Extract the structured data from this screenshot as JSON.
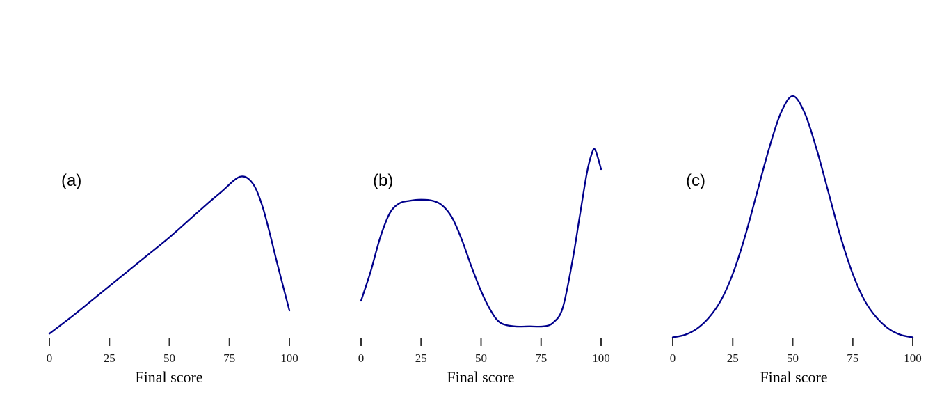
{
  "style": {
    "curve_color": "#00008B",
    "text_color": "#000000",
    "tick_color": "#333333",
    "background": "#ffffff"
  },
  "chart_data": [
    {
      "type": "line",
      "label": "(a)",
      "xlabel": "Final score",
      "xlim": [
        0,
        100
      ],
      "x_ticks": [
        0,
        25,
        50,
        75,
        100
      ],
      "legend": "none",
      "grid": false,
      "x": [
        0,
        10,
        20,
        30,
        40,
        50,
        58,
        66,
        72,
        77,
        80,
        83,
        86,
        89,
        92,
        95,
        100
      ],
      "density": [
        0.025,
        0.1,
        0.18,
        0.26,
        0.34,
        0.42,
        0.49,
        0.56,
        0.61,
        0.655,
        0.67,
        0.66,
        0.62,
        0.54,
        0.43,
        0.31,
        0.12
      ]
    },
    {
      "type": "line",
      "label": "(b)",
      "xlabel": "Final score",
      "xlim": [
        0,
        100
      ],
      "x_ticks": [
        0,
        25,
        50,
        75,
        100
      ],
      "legend": "none",
      "grid": false,
      "x": [
        0,
        4,
        8,
        12,
        16,
        20,
        25,
        30,
        34,
        38,
        42,
        46,
        50,
        54,
        58,
        64,
        70,
        76,
        80,
        84,
        88,
        91,
        94,
        96,
        97.5,
        100
      ],
      "density": [
        0.16,
        0.28,
        0.42,
        0.52,
        0.56,
        0.57,
        0.575,
        0.57,
        0.55,
        0.5,
        0.41,
        0.3,
        0.2,
        0.12,
        0.07,
        0.055,
        0.055,
        0.055,
        0.07,
        0.13,
        0.32,
        0.5,
        0.68,
        0.76,
        0.78,
        0.7
      ]
    },
    {
      "type": "line",
      "label": "(c)",
      "xlabel": "Final score",
      "xlim": [
        0,
        100
      ],
      "x_ticks": [
        0,
        25,
        50,
        75,
        100
      ],
      "legend": "none",
      "grid": false,
      "x": [
        0,
        5,
        10,
        15,
        20,
        25,
        30,
        35,
        40,
        45,
        50,
        55,
        60,
        65,
        70,
        75,
        80,
        85,
        90,
        95,
        100
      ],
      "density": [
        0.01,
        0.02,
        0.045,
        0.09,
        0.16,
        0.27,
        0.42,
        0.6,
        0.78,
        0.93,
        1.0,
        0.93,
        0.78,
        0.6,
        0.42,
        0.27,
        0.16,
        0.09,
        0.045,
        0.02,
        0.01
      ]
    }
  ]
}
